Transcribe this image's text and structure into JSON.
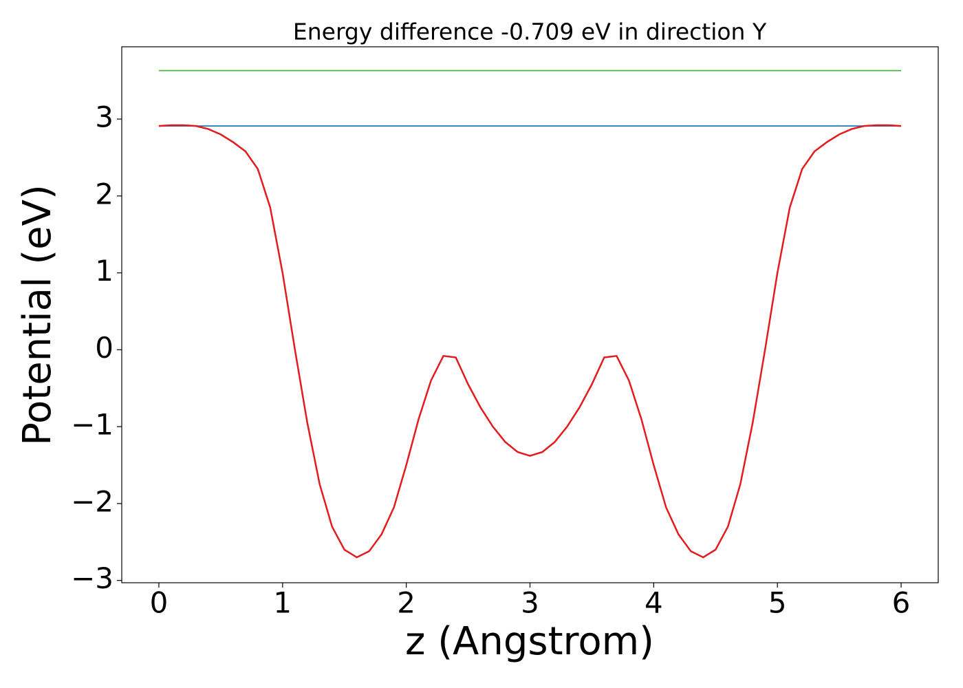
{
  "chart_data": {
    "type": "line",
    "title": "Energy difference -0.709 eV in direction Y",
    "x_label": "z (Angstrom)",
    "y_label": "Potential (eV)",
    "xlim": [
      -0.3,
      6.3
    ],
    "ylim": [
      -3.03,
      3.94
    ],
    "xticks": [
      0,
      1,
      2,
      3,
      4,
      5,
      6
    ],
    "yticks": [
      {
        "value": -3,
        "label": "−3"
      },
      {
        "value": -2,
        "label": "−2"
      },
      {
        "value": -1,
        "label": "−1"
      },
      0,
      1,
      2,
      3
    ],
    "grid": false,
    "series": [
      {
        "color": "#4daf4a",
        "x": [
          0,
          6
        ],
        "values": [
          3.63,
          3.63
        ]
      },
      {
        "color": "#1f77b4",
        "x": [
          0,
          6
        ],
        "values": [
          2.91,
          2.91
        ]
      },
      {
        "color": "#e41a1c",
        "x": [
          0,
          0.1,
          0.2,
          0.3,
          0.4,
          0.5,
          0.6,
          0.7,
          0.8,
          0.9,
          1.0,
          1.1,
          1.2,
          1.3,
          1.4,
          1.5,
          1.6,
          1.7,
          1.8,
          1.9,
          2.0,
          2.1,
          2.2,
          2.3,
          2.4,
          2.5,
          2.6,
          2.7,
          2.8,
          2.9,
          3.0,
          3.1,
          3.2,
          3.3,
          3.4,
          3.5,
          3.6,
          3.7,
          3.8,
          3.9,
          4.0,
          4.1,
          4.2,
          4.3,
          4.4,
          4.5,
          4.6,
          4.7,
          4.8,
          4.9,
          5.0,
          5.1,
          5.2,
          5.3,
          5.4,
          5.5,
          5.6,
          5.7,
          5.8,
          5.9,
          6.0
        ],
        "values": [
          2.91,
          2.92,
          2.92,
          2.91,
          2.87,
          2.8,
          2.7,
          2.58,
          2.35,
          1.85,
          1.0,
          0.0,
          -0.95,
          -1.75,
          -2.3,
          -2.6,
          -2.7,
          -2.62,
          -2.4,
          -2.05,
          -1.5,
          -0.9,
          -0.4,
          -0.08,
          -0.1,
          -0.45,
          -0.75,
          -1.0,
          -1.2,
          -1.33,
          -1.38,
          -1.33,
          -1.2,
          -1.0,
          -0.75,
          -0.45,
          -0.1,
          -0.08,
          -0.4,
          -0.9,
          -1.5,
          -2.05,
          -2.4,
          -2.62,
          -2.7,
          -2.6,
          -2.3,
          -1.75,
          -0.95,
          0.0,
          1.0,
          1.85,
          2.35,
          2.58,
          2.7,
          2.8,
          2.87,
          2.91,
          2.92,
          2.92,
          2.91
        ]
      }
    ]
  }
}
